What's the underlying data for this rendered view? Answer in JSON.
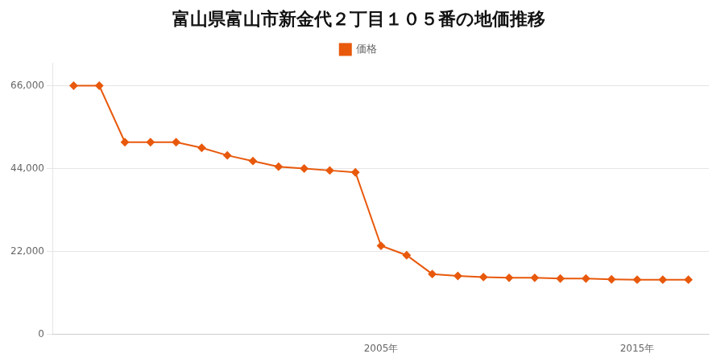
{
  "chart_data": {
    "type": "line",
    "title": "富山県富山市新金代２丁目１０５番の地価推移",
    "x": [
      1993,
      1994,
      1995,
      1996,
      1997,
      1998,
      1999,
      2000,
      2001,
      2002,
      2003,
      2004,
      2005,
      2006,
      2007,
      2008,
      2009,
      2010,
      2011,
      2012,
      2013,
      2014,
      2015,
      2016,
      2017
    ],
    "series": [
      {
        "name": "価格",
        "color": "#e8590c",
        "marker": "diamond",
        "values": [
          66000,
          66000,
          51000,
          51000,
          51000,
          49500,
          47500,
          46000,
          44500,
          44000,
          43500,
          43000,
          23500,
          21000,
          16000,
          15500,
          15200,
          15000,
          15000,
          14800,
          14800,
          14600,
          14500,
          14500,
          14500
        ]
      }
    ],
    "xlim": [
      1992.2,
      2017.8
    ],
    "xticks": [
      {
        "value": 2005,
        "label": "2005年"
      },
      {
        "value": 2015,
        "label": "2015年"
      }
    ],
    "ylim": [
      0,
      72000
    ],
    "yticks": [
      0,
      {
        "value": 22000,
        "label": "22,000"
      },
      {
        "value": 44000,
        "label": "44,000"
      },
      {
        "value": 66000,
        "label": "66,000"
      }
    ],
    "grid": "y",
    "legend": "top"
  }
}
